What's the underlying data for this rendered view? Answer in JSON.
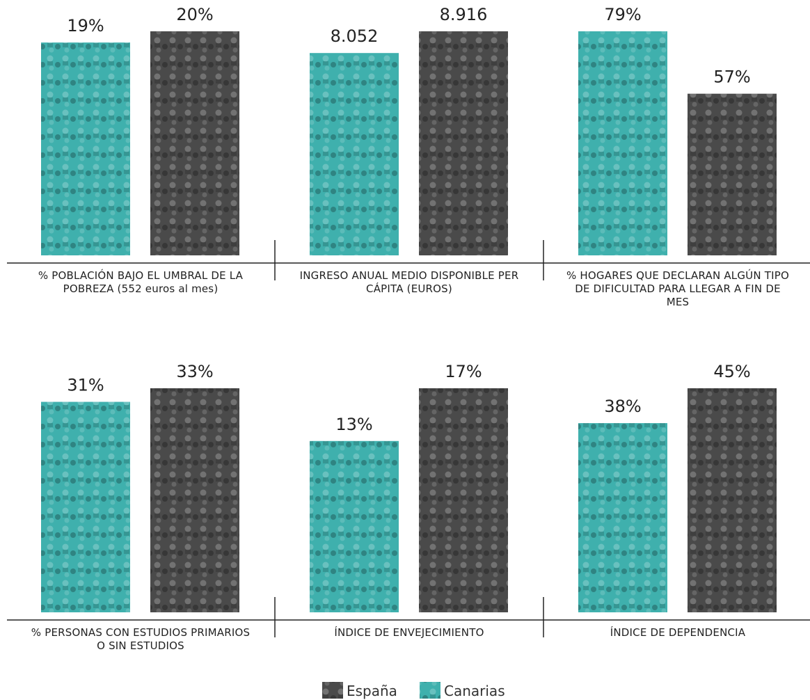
{
  "chart_data": {
    "type": "bar",
    "categories": [
      "% POBLACIÓN BAJO EL UMBRAL DE LA POBREZA (552 euros al mes)",
      "INGRESO ANUAL MEDIO DISPONIBLE PER CÁPITA (EUROS)",
      "% HOGARES QUE DECLARAN ALGÚN TIPO DE DIFICULTAD PARA LLEGAR A FIN DE MES",
      "% PERSONAS CON ESTUDIOS PRIMARIOS O SIN ESTUDIOS",
      "ÍNDICE DE ENVEJECIMIENTO",
      "ÍNDICE DE DEPENDENCIA"
    ],
    "series": [
      {
        "name": "España",
        "color": "#4a4a4a",
        "values": [
          20,
          8916,
          57,
          33,
          17,
          45
        ],
        "value_labels": [
          "20%",
          "8.916",
          "57%",
          "33%",
          "17%",
          "45%"
        ]
      },
      {
        "name": "Canarias",
        "color": "#3fb0ad",
        "values": [
          19,
          8052,
          79,
          31,
          13,
          38
        ],
        "value_labels": [
          "19%",
          "8.052",
          "79%",
          "31%",
          "13%",
          "38%"
        ]
      }
    ]
  }
}
